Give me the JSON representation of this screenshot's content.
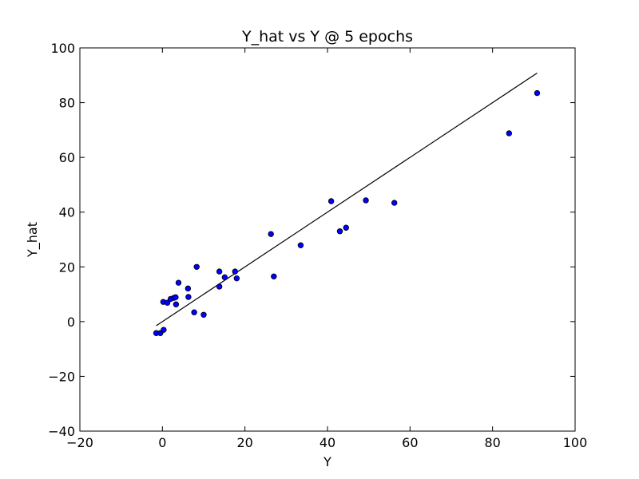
{
  "chart_data": {
    "type": "scatter",
    "title": "Y_hat vs Y @ 5 epochs",
    "xlabel": "Y",
    "ylabel": "Y_hat",
    "xlim": [
      -20,
      100
    ],
    "ylim": [
      -40,
      100
    ],
    "xticks": [
      "−20",
      "0",
      "20",
      "40",
      "60",
      "80",
      "100"
    ],
    "yticks": [
      "−40",
      "−20",
      "0",
      "20",
      "40",
      "60",
      "80",
      "100"
    ],
    "xtick_values": [
      -20,
      0,
      20,
      40,
      60,
      80,
      100
    ],
    "ytick_values": [
      -40,
      -20,
      0,
      20,
      40,
      60,
      80,
      100
    ],
    "grid": false,
    "point_color": "#0000ff",
    "line_color": "#000000",
    "series": [
      {
        "kind": "scatter",
        "points": [
          [
            -1.5,
            -4.2
          ],
          [
            -0.5,
            -4.2
          ],
          [
            0.3,
            -3.0
          ],
          [
            0.2,
            7.2
          ],
          [
            1.2,
            6.9
          ],
          [
            2.0,
            8.3
          ],
          [
            2.8,
            8.7
          ],
          [
            3.2,
            8.9
          ],
          [
            3.3,
            6.3
          ],
          [
            3.9,
            14.2
          ],
          [
            6.2,
            12.1
          ],
          [
            6.3,
            9.0
          ],
          [
            7.7,
            3.4
          ],
          [
            8.3,
            20.0
          ],
          [
            10.0,
            2.5
          ],
          [
            13.8,
            18.3
          ],
          [
            13.8,
            12.8
          ],
          [
            15.1,
            16.2
          ],
          [
            17.6,
            18.3
          ],
          [
            18.0,
            15.8
          ],
          [
            26.3,
            32.0
          ],
          [
            27.0,
            16.5
          ],
          [
            33.5,
            27.9
          ],
          [
            40.9,
            44.0
          ],
          [
            43.0,
            33.0
          ],
          [
            44.5,
            34.3
          ],
          [
            49.3,
            44.3
          ],
          [
            56.2,
            43.4
          ],
          [
            84.0,
            68.8
          ],
          [
            90.8,
            83.5
          ]
        ]
      },
      {
        "kind": "line",
        "points": [
          [
            -1.5,
            -1.5
          ],
          [
            90.8,
            90.8
          ]
        ]
      }
    ]
  }
}
